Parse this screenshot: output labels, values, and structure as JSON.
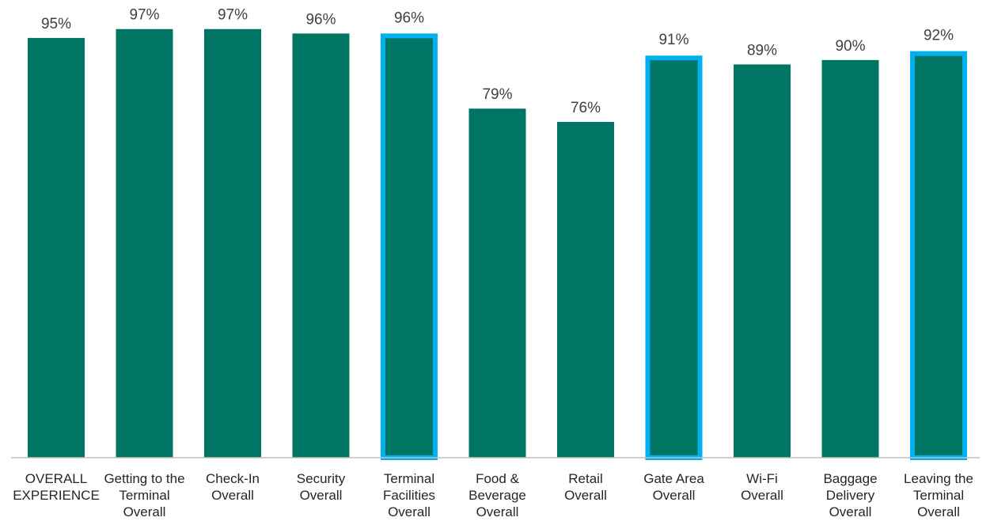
{
  "chart_data": {
    "type": "bar",
    "title": "",
    "xlabel": "",
    "ylabel": "",
    "ylim": [
      0,
      100
    ],
    "grid": false,
    "legend": "none",
    "categories": [
      [
        "OVERALL",
        "EXPERIENCE"
      ],
      [
        "Getting to the",
        "Terminal",
        "Overall"
      ],
      [
        "Check-In",
        "Overall"
      ],
      [
        "Security",
        "Overall"
      ],
      [
        "Terminal",
        "Facilities",
        "Overall"
      ],
      [
        "Food &",
        "Beverage",
        "Overall"
      ],
      [
        "Retail",
        "Overall"
      ],
      [
        "Gate Area",
        "Overall"
      ],
      [
        "Wi-Fi",
        "Overall"
      ],
      [
        "Baggage",
        "Delivery",
        "Overall"
      ],
      [
        "Leaving the",
        "Terminal",
        "Overall"
      ]
    ],
    "values": [
      95,
      97,
      97,
      96,
      96,
      79,
      76,
      91,
      89,
      90,
      92
    ],
    "data_labels": [
      "95%",
      "97%",
      "97%",
      "96%",
      "96%",
      "79%",
      "76%",
      "91%",
      "89%",
      "90%",
      "92%"
    ],
    "highlighted": [
      false,
      false,
      false,
      false,
      true,
      false,
      false,
      true,
      false,
      false,
      true
    ],
    "colors": {
      "bar": "#007563",
      "highlight_outline": "#00B0F0",
      "axis": "#BFBFBF",
      "label_text": "#404040",
      "category_text": "#262626"
    }
  }
}
